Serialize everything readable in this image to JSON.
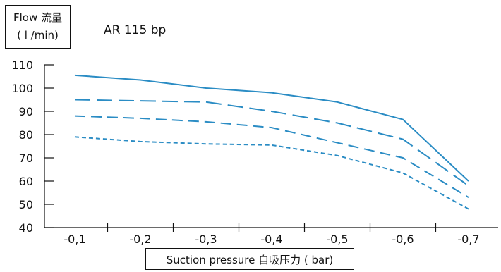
{
  "chart_data": {
    "type": "line",
    "title": "AR 115 bp",
    "ylabel_line1": "Flow 流量",
    "ylabel_line2": "( l /min)",
    "xlabel": "Suction pressure 自吸压力 ( bar)",
    "categories": [
      "-0,1",
      "-0,2",
      "-0,3",
      "-0,4",
      "-0,5",
      "-0,6",
      "-0,7"
    ],
    "yticks": [
      "40",
      "50",
      "60",
      "70",
      "80",
      "90",
      "100",
      "110"
    ],
    "ylim": [
      40,
      110
    ],
    "grid": false,
    "line_color": "#2a8cc4",
    "series": [
      {
        "style": "solid",
        "values": [
          105.5,
          103.5,
          100,
          98,
          94,
          86.5,
          60
        ]
      },
      {
        "style": "long-dash",
        "values": [
          95,
          94.5,
          94,
          90,
          85,
          78,
          58
        ]
      },
      {
        "style": "medium-dash",
        "values": [
          88,
          87,
          85.5,
          83,
          76.5,
          70,
          53
        ]
      },
      {
        "style": "short-dash",
        "values": [
          79,
          77,
          76,
          75.5,
          71,
          63.5,
          48
        ]
      }
    ]
  }
}
